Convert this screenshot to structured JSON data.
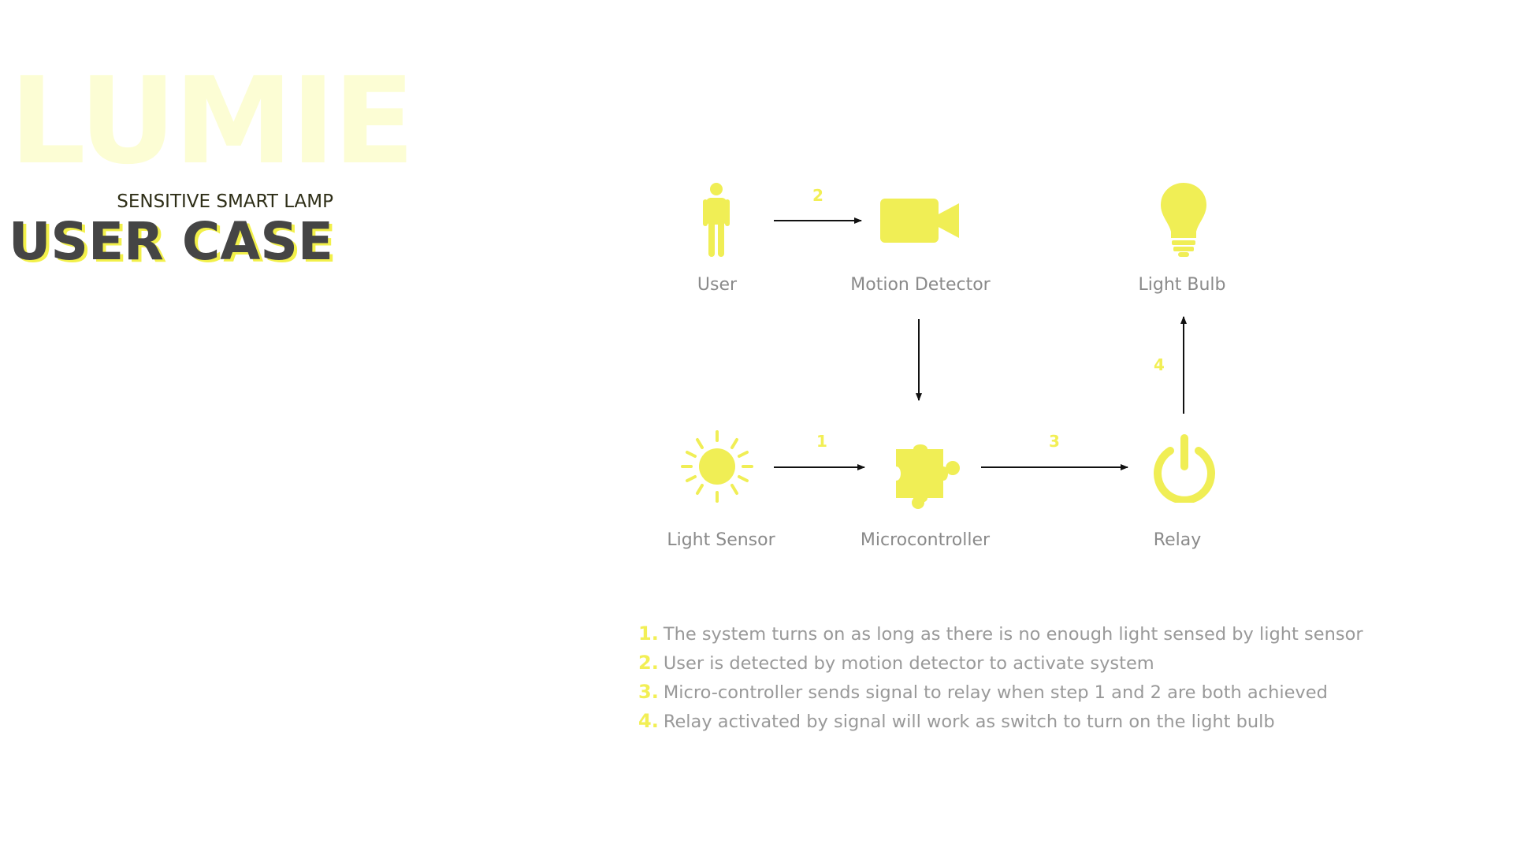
{
  "brand": {
    "name": "LUMIE",
    "tagline": "SENSITIVE SMART LAMP"
  },
  "section_title": "USER CASE",
  "colors": {
    "accent": "#f0ee55",
    "label": "#8a8a8a",
    "title": "#454545",
    "brand": "#fcfdd4"
  },
  "nodes": {
    "user": {
      "label": "User",
      "icon": "person-icon"
    },
    "motion_detector": {
      "label": "Motion Detector",
      "icon": "video-camera-icon"
    },
    "light_bulb": {
      "label": "Light Bulb",
      "icon": "light-bulb-icon"
    },
    "light_sensor": {
      "label": "Light Sensor",
      "icon": "sun-icon"
    },
    "microcontroller": {
      "label": "Microcontroller",
      "icon": "puzzle-piece-icon"
    },
    "relay": {
      "label": "Relay",
      "icon": "power-icon"
    }
  },
  "edges": [
    {
      "from": "user",
      "to": "motion_detector",
      "label": "2"
    },
    {
      "from": "motion_detector",
      "to": "microcontroller",
      "label": ""
    },
    {
      "from": "light_sensor",
      "to": "microcontroller",
      "label": "1"
    },
    {
      "from": "microcontroller",
      "to": "relay",
      "label": "3"
    },
    {
      "from": "relay",
      "to": "light_bulb",
      "label": "4"
    }
  ],
  "steps": [
    {
      "index": "1.",
      "text": "The system turns on as long as there is no enough light sensed by light sensor"
    },
    {
      "index": "2.",
      "text": "User is detected by motion detector to activate system"
    },
    {
      "index": "3.",
      "text": "Micro-controller sends signal to relay when step 1 and 2 are both achieved"
    },
    {
      "index": "4.",
      "text": "Relay activated by signal will work as switch to turn on the light bulb"
    }
  ]
}
